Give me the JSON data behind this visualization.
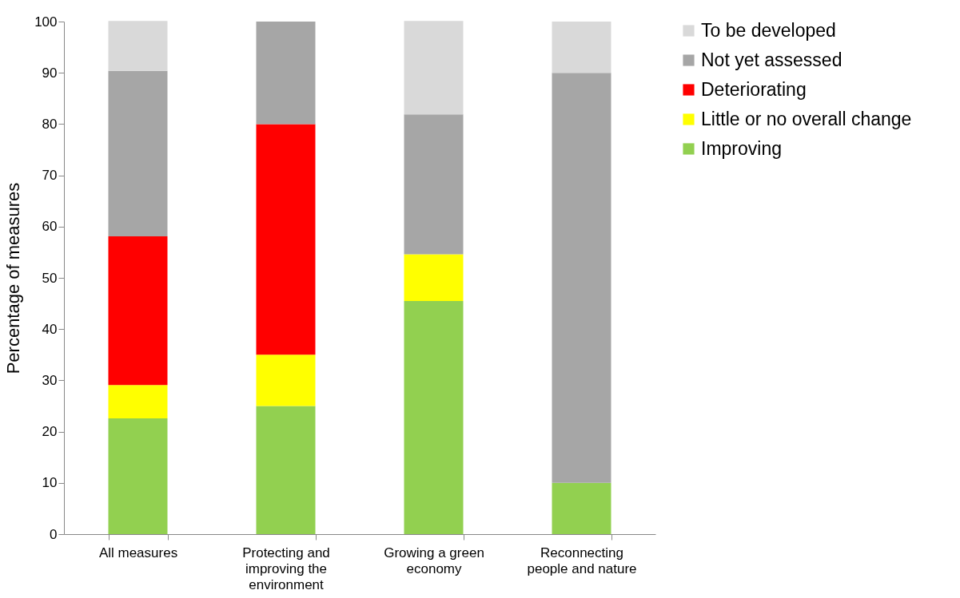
{
  "chart_data": {
    "type": "bar",
    "stacked": true,
    "ylabel": "Percentage of measures",
    "categories": [
      "All measures",
      "Protecting and improving the environment",
      "Growing a green economy",
      "Reconnecting people and nature"
    ],
    "series": [
      {
        "name": "Improving",
        "color": "#92d050",
        "values": [
          22.6,
          25,
          45.5,
          10
        ]
      },
      {
        "name": "Little or no overall change",
        "color": "#ffff00",
        "values": [
          6.5,
          10,
          9.1,
          0
        ]
      },
      {
        "name": "Deteriorating",
        "color": "#ff0000",
        "values": [
          29.0,
          45,
          0,
          0
        ]
      },
      {
        "name": "Not yet assessed",
        "color": "#a6a6a6",
        "values": [
          32.3,
          20,
          27.3,
          80
        ]
      },
      {
        "name": "To be developed",
        "color": "#d9d9d9",
        "values": [
          9.7,
          0,
          18.2,
          10
        ]
      }
    ],
    "ylim": [
      0,
      100
    ],
    "yticks": [
      0,
      10,
      20,
      30,
      40,
      50,
      60,
      70,
      80,
      90,
      100
    ],
    "grid": false,
    "legend": "right"
  }
}
